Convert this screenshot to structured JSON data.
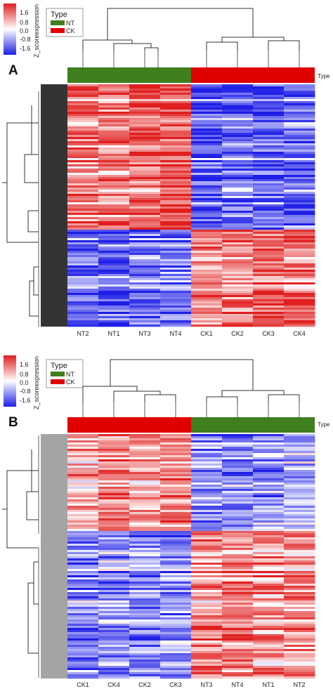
{
  "figure": {
    "panels": [
      {
        "label": "A",
        "colorbar": {
          "title": "Z_scoreexpression",
          "ticks": [
            "1.6",
            "0.8",
            "0.0",
            "-0.8",
            "-1.6"
          ]
        },
        "legend": {
          "title": "Type",
          "items": [
            {
              "label": "NT",
              "color": "#3f7f1e"
            },
            {
              "label": "CK",
              "color": "#e00000"
            }
          ]
        },
        "annotation_label": "Type"
      },
      {
        "label": "B",
        "colorbar": {
          "title": "Z_scoreexpression",
          "ticks": [
            "1.6",
            "0.8",
            "0.0",
            "-0.8",
            "-1.6"
          ]
        },
        "legend": {
          "title": "Type",
          "items": [
            {
              "label": "NT",
              "color": "#3f7f1e"
            },
            {
              "label": "CK",
              "color": "#e00000"
            }
          ]
        },
        "annotation_label": "Type"
      }
    ]
  },
  "chart_data": [
    {
      "type": "heatmap",
      "panel": "A",
      "title": "",
      "columns": [
        "NT2",
        "NT1",
        "NT3",
        "NT4",
        "CK1",
        "CK2",
        "CK3",
        "CK4"
      ],
      "column_groups": [
        "NT",
        "NT",
        "NT",
        "NT",
        "CK",
        "CK",
        "CK",
        "CK"
      ],
      "row_clusters": [
        {
          "share": 0.6,
          "values": [
            0.9,
            0.8,
            1.0,
            1.1,
            -1.1,
            -0.9,
            -1.0,
            -1.0
          ]
        },
        {
          "share": 0.4,
          "values": [
            -1.0,
            -1.1,
            -1.0,
            -0.9,
            0.8,
            0.9,
            1.1,
            1.0
          ]
        }
      ],
      "color_scale": {
        "min": -1.6,
        "max": 1.6,
        "low": "#1e1ee6",
        "mid": "#ffffff",
        "high": "#e01e1e"
      }
    },
    {
      "type": "heatmap",
      "panel": "B",
      "title": "",
      "columns": [
        "CK1",
        "CK4",
        "CK2",
        "CK3",
        "NT3",
        "NT4",
        "NT1",
        "NT2"
      ],
      "column_groups": [
        "CK",
        "CK",
        "CK",
        "CK",
        "NT",
        "NT",
        "NT",
        "NT"
      ],
      "row_clusters": [
        {
          "share": 0.4,
          "values": [
            0.6,
            1.0,
            0.7,
            0.8,
            -0.8,
            -0.9,
            -0.8,
            -0.6
          ]
        },
        {
          "share": 0.6,
          "values": [
            -0.8,
            -0.7,
            -0.9,
            -0.8,
            0.8,
            0.9,
            0.7,
            0.8
          ]
        }
      ],
      "color_scale": {
        "min": -1.6,
        "max": 1.6,
        "low": "#1e1ee6",
        "mid": "#ffffff",
        "high": "#e01e1e"
      }
    }
  ]
}
